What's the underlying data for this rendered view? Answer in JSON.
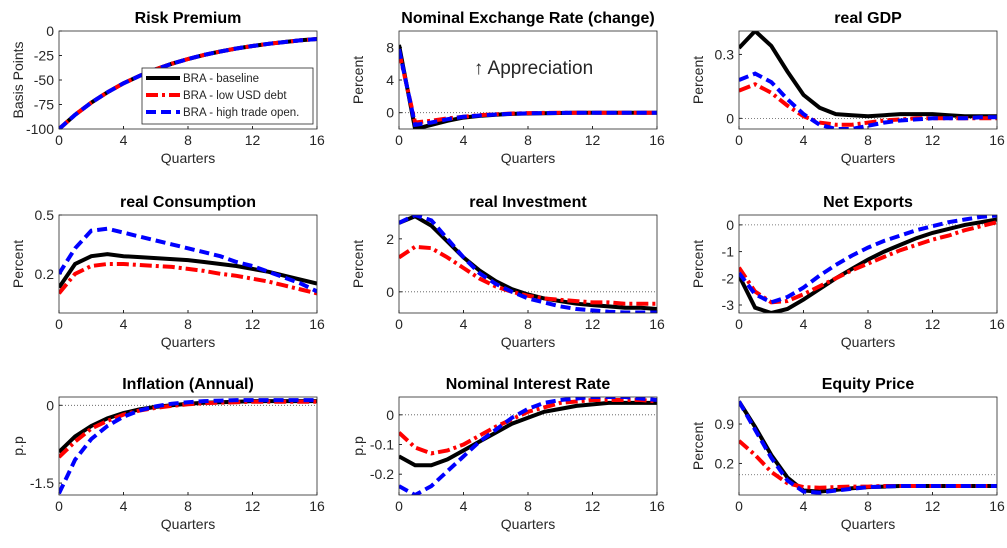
{
  "chart_data": [
    {
      "type": "line",
      "title": "Risk Premium",
      "ylabel": "Basis Points",
      "xlabel": "Quarters",
      "legend": "lower right",
      "x": [
        0,
        1,
        2,
        3,
        4,
        5,
        6,
        7,
        8,
        9,
        10,
        11,
        12,
        13,
        14,
        15,
        16
      ],
      "xlim": [
        0,
        16
      ],
      "xticks": [
        0,
        4,
        8,
        12,
        16
      ],
      "ylim": [
        -100,
        0
      ],
      "yticks": [
        -100,
        -75,
        -50,
        -25,
        0
      ],
      "series": [
        {
          "name": "BRA - baseline",
          "color": "#000000",
          "style": "solid",
          "values": [
            -100,
            -85.5,
            -73.1,
            -62.5,
            -53.4,
            -45.7,
            -39.1,
            -33.4,
            -28.6,
            -24.4,
            -20.9,
            -17.9,
            -15.3,
            -13.1,
            -11.2,
            -9.5,
            -8.2
          ]
        },
        {
          "name": "BRA - low USD debt",
          "color": "#ff0000",
          "style": "dashdot",
          "values": [
            -100,
            -85.5,
            -73.1,
            -62.5,
            -53.4,
            -45.7,
            -39.1,
            -33.4,
            -28.6,
            -24.4,
            -20.9,
            -17.9,
            -15.3,
            -13.1,
            -11.2,
            -9.5,
            -8.2
          ]
        },
        {
          "name": "BRA - high trade open.",
          "color": "#0000ff",
          "style": "dashed",
          "values": [
            -100,
            -85.5,
            -73.1,
            -62.5,
            -53.4,
            -45.7,
            -39.1,
            -33.4,
            -28.6,
            -24.4,
            -20.9,
            -17.9,
            -15.3,
            -13.1,
            -11.2,
            -9.5,
            -8.2
          ]
        }
      ]
    },
    {
      "type": "line",
      "title": "Nominal Exchange Rate (change)",
      "ylabel": "Percent",
      "xlabel": "Quarters",
      "annotation": "↑ Appreciation",
      "x": [
        0,
        1,
        2,
        3,
        4,
        5,
        6,
        7,
        8,
        9,
        10,
        11,
        12,
        13,
        14,
        15,
        16
      ],
      "xlim": [
        0,
        16
      ],
      "xticks": [
        0,
        4,
        8,
        12,
        16
      ],
      "ylim": [
        -2,
        10
      ],
      "yticks": [
        0,
        4,
        8
      ],
      "series": [
        {
          "color": "#000000",
          "style": "solid",
          "values": [
            8.3,
            -2,
            -1.5,
            -1,
            -0.6,
            -0.4,
            -0.25,
            -0.15,
            -0.1,
            -0.06,
            -0.04,
            -0.02,
            -0.01,
            0,
            0,
            0,
            0
          ]
        },
        {
          "color": "#ff0000",
          "style": "dashdot",
          "values": [
            7.5,
            -1.2,
            -1,
            -0.7,
            -0.5,
            -0.3,
            -0.2,
            -0.1,
            -0.05,
            -0.03,
            -0.02,
            -0.01,
            0,
            0,
            0,
            0,
            0
          ]
        },
        {
          "color": "#0000ff",
          "style": "dashed",
          "values": [
            7.8,
            -1.5,
            -1.2,
            -0.8,
            -0.5,
            -0.35,
            -0.22,
            -0.13,
            -0.08,
            -0.05,
            -0.03,
            -0.01,
            0,
            0,
            0,
            0,
            0
          ]
        }
      ]
    },
    {
      "type": "line",
      "title": "real GDP",
      "ylabel": "Percent",
      "xlabel": "Quarters",
      "x": [
        0,
        1,
        2,
        3,
        4,
        5,
        6,
        7,
        8,
        9,
        10,
        11,
        12,
        13,
        14,
        15,
        16
      ],
      "xlim": [
        0,
        16
      ],
      "xticks": [
        0,
        4,
        8,
        12,
        16
      ],
      "ylim": [
        -0.05,
        0.41
      ],
      "yticks": [
        0,
        0.3
      ],
      "series": [
        {
          "color": "#000000",
          "style": "solid",
          "values": [
            0.33,
            0.41,
            0.34,
            0.22,
            0.11,
            0.05,
            0.02,
            0.015,
            0.01,
            0.015,
            0.02,
            0.02,
            0.02,
            0.015,
            0.01,
            0.01,
            0.01
          ]
        },
        {
          "color": "#ff0000",
          "style": "dashdot",
          "values": [
            0.13,
            0.16,
            0.12,
            0.06,
            0.01,
            -0.02,
            -0.03,
            -0.03,
            -0.02,
            -0.01,
            -0.005,
            0,
            0,
            0,
            0,
            0,
            0
          ]
        },
        {
          "color": "#0000ff",
          "style": "dashed",
          "values": [
            0.18,
            0.21,
            0.17,
            0.09,
            0.02,
            -0.03,
            -0.05,
            -0.05,
            -0.035,
            -0.02,
            -0.01,
            -0.005,
            0,
            0,
            0,
            0.005,
            0.005
          ]
        }
      ]
    },
    {
      "type": "line",
      "title": "real Consumption",
      "ylabel": "Percent",
      "xlabel": "Quarters",
      "x": [
        0,
        1,
        2,
        3,
        4,
        5,
        6,
        7,
        8,
        9,
        10,
        11,
        12,
        13,
        14,
        15,
        16
      ],
      "xlim": [
        0,
        16
      ],
      "xticks": [
        0,
        4,
        8,
        12,
        16
      ],
      "ylim": [
        0,
        0.5
      ],
      "yticks": [
        0.2,
        0.5
      ],
      "series": [
        {
          "color": "#000000",
          "style": "solid",
          "values": [
            0.13,
            0.25,
            0.29,
            0.3,
            0.29,
            0.285,
            0.28,
            0.275,
            0.27,
            0.26,
            0.25,
            0.24,
            0.225,
            0.21,
            0.19,
            0.17,
            0.15
          ]
        },
        {
          "color": "#ff0000",
          "style": "dashdot",
          "values": [
            0.1,
            0.2,
            0.24,
            0.25,
            0.25,
            0.245,
            0.24,
            0.235,
            0.225,
            0.215,
            0.2,
            0.19,
            0.175,
            0.16,
            0.14,
            0.12,
            0.1
          ]
        },
        {
          "color": "#0000ff",
          "style": "dashed",
          "values": [
            0.2,
            0.33,
            0.42,
            0.43,
            0.41,
            0.39,
            0.37,
            0.35,
            0.33,
            0.31,
            0.29,
            0.26,
            0.24,
            0.21,
            0.18,
            0.15,
            0.11
          ]
        }
      ]
    },
    {
      "type": "line",
      "title": "real Investment",
      "ylabel": "Percent",
      "xlabel": "Quarters",
      "x": [
        0,
        1,
        2,
        3,
        4,
        5,
        6,
        7,
        8,
        9,
        10,
        11,
        12,
        13,
        14,
        15,
        16
      ],
      "xlim": [
        0,
        16
      ],
      "xticks": [
        0,
        4,
        8,
        12,
        16
      ],
      "ylim": [
        -0.8,
        2.9
      ],
      "yticks": [
        0,
        2
      ],
      "series": [
        {
          "color": "#000000",
          "style": "solid",
          "values": [
            2.6,
            2.85,
            2.5,
            1.9,
            1.3,
            0.8,
            0.4,
            0.1,
            -0.1,
            -0.25,
            -0.35,
            -0.45,
            -0.5,
            -0.55,
            -0.6,
            -0.6,
            -0.65
          ]
        },
        {
          "color": "#ff0000",
          "style": "dashdot",
          "values": [
            1.3,
            1.7,
            1.65,
            1.3,
            0.9,
            0.5,
            0.2,
            0,
            -0.15,
            -0.25,
            -0.3,
            -0.35,
            -0.4,
            -0.4,
            -0.45,
            -0.45,
            -0.45
          ]
        },
        {
          "color": "#0000ff",
          "style": "dashed",
          "values": [
            2.6,
            2.9,
            2.7,
            2,
            1.3,
            0.7,
            0.3,
            0,
            -0.25,
            -0.4,
            -0.55,
            -0.65,
            -0.7,
            -0.75,
            -0.78,
            -0.78,
            -0.78
          ]
        }
      ]
    },
    {
      "type": "line",
      "title": "Net Exports",
      "ylabel": "Percent",
      "xlabel": "Quarters",
      "x": [
        0,
        1,
        2,
        3,
        4,
        5,
        6,
        7,
        8,
        9,
        10,
        11,
        12,
        13,
        14,
        15,
        16
      ],
      "xlim": [
        0,
        16
      ],
      "xticks": [
        0,
        4,
        8,
        12,
        16
      ],
      "ylim": [
        -3.3,
        0.37
      ],
      "yticks": [
        -3,
        -2,
        -1,
        0
      ],
      "series": [
        {
          "color": "#000000",
          "style": "solid",
          "values": [
            -1.9,
            -3.1,
            -3.3,
            -3.15,
            -2.8,
            -2.4,
            -2,
            -1.65,
            -1.3,
            -1,
            -0.75,
            -0.5,
            -0.3,
            -0.15,
            0,
            0.1,
            0.2
          ]
        },
        {
          "color": "#ff0000",
          "style": "dashdot",
          "values": [
            -1.6,
            -2.5,
            -2.9,
            -2.85,
            -2.6,
            -2.3,
            -2,
            -1.7,
            -1.45,
            -1.2,
            -0.95,
            -0.75,
            -0.55,
            -0.4,
            -0.2,
            -0.05,
            0.1
          ]
        },
        {
          "color": "#0000ff",
          "style": "dashed",
          "values": [
            -1.8,
            -2.6,
            -2.9,
            -2.7,
            -2.35,
            -1.9,
            -1.5,
            -1.15,
            -0.85,
            -0.6,
            -0.4,
            -0.2,
            -0.05,
            0.1,
            0.2,
            0.3,
            0.35
          ]
        }
      ]
    },
    {
      "type": "line",
      "title": "Inflation (Annual)",
      "ylabel": "p.p",
      "xlabel": "Quarters",
      "x": [
        0,
        1,
        2,
        3,
        4,
        5,
        6,
        7,
        8,
        9,
        10,
        11,
        12,
        13,
        14,
        15,
        16
      ],
      "xlim": [
        0,
        16
      ],
      "xticks": [
        0,
        4,
        8,
        12,
        16
      ],
      "ylim": [
        -1.73,
        0.16
      ],
      "yticks": [
        -1.5,
        0
      ],
      "series": [
        {
          "color": "#000000",
          "style": "solid",
          "values": [
            -0.9,
            -0.6,
            -0.4,
            -0.25,
            -0.15,
            -0.08,
            -0.03,
            0,
            0.03,
            0.05,
            0.06,
            0.07,
            0.08,
            0.08,
            0.08,
            0.08,
            0.08
          ]
        },
        {
          "color": "#ff0000",
          "style": "dashdot",
          "values": [
            -1,
            -0.7,
            -0.45,
            -0.3,
            -0.18,
            -0.1,
            -0.05,
            -0.01,
            0.02,
            0.04,
            0.05,
            0.06,
            0.07,
            0.07,
            0.07,
            0.07,
            0.07
          ]
        },
        {
          "color": "#0000ff",
          "style": "dashed",
          "values": [
            -1.7,
            -1.05,
            -0.65,
            -0.4,
            -0.22,
            -0.1,
            -0.02,
            0.03,
            0.06,
            0.08,
            0.09,
            0.1,
            0.1,
            0.1,
            0.1,
            0.1,
            0.1
          ]
        }
      ]
    },
    {
      "type": "line",
      "title": "Nominal Interest Rate",
      "ylabel": "p.p",
      "xlabel": "Quarters",
      "x": [
        0,
        1,
        2,
        3,
        4,
        5,
        6,
        7,
        8,
        9,
        10,
        11,
        12,
        13,
        14,
        15,
        16
      ],
      "xlim": [
        0,
        16
      ],
      "xticks": [
        0,
        4,
        8,
        12,
        16
      ],
      "ylim": [
        -0.27,
        0.06
      ],
      "yticks": [
        -0.2,
        -0.1,
        0
      ],
      "series": [
        {
          "color": "#000000",
          "style": "solid",
          "values": [
            -0.14,
            -0.17,
            -0.17,
            -0.15,
            -0.12,
            -0.09,
            -0.06,
            -0.03,
            -0.01,
            0.01,
            0.02,
            0.03,
            0.035,
            0.04,
            0.04,
            0.04,
            0.04
          ]
        },
        {
          "color": "#ff0000",
          "style": "dashdot",
          "values": [
            -0.06,
            -0.11,
            -0.13,
            -0.12,
            -0.1,
            -0.07,
            -0.04,
            -0.015,
            0.01,
            0.025,
            0.04,
            0.045,
            0.05,
            0.05,
            0.05,
            0.05,
            0.045
          ]
        },
        {
          "color": "#0000ff",
          "style": "dashed",
          "values": [
            -0.24,
            -0.27,
            -0.24,
            -0.19,
            -0.14,
            -0.09,
            -0.05,
            -0.01,
            0.02,
            0.04,
            0.05,
            0.055,
            0.06,
            0.06,
            0.06,
            0.055,
            0.05
          ]
        }
      ]
    },
    {
      "type": "line",
      "title": "Equity Price",
      "ylabel": "Percent",
      "xlabel": "Quarters",
      "x": [
        0,
        1,
        2,
        3,
        4,
        5,
        6,
        7,
        8,
        9,
        10,
        11,
        12,
        13,
        14,
        15,
        16
      ],
      "xlim": [
        0,
        16
      ],
      "xticks": [
        0,
        4,
        8,
        12,
        16
      ],
      "ylim": [
        -0.36,
        1.38
      ],
      "yticks": [
        0.2,
        0.9
      ],
      "series": [
        {
          "color": "#000000",
          "style": "solid",
          "values": [
            1.3,
            0.85,
            0.35,
            -0.05,
            -0.28,
            -0.3,
            -0.27,
            -0.24,
            -0.22,
            -0.21,
            -0.2,
            -0.2,
            -0.2,
            -0.2,
            -0.2,
            -0.2,
            -0.2
          ]
        },
        {
          "color": "#ff0000",
          "style": "dashdot",
          "values": [
            0.6,
            0.35,
            0.05,
            -0.15,
            -0.22,
            -0.23,
            -0.22,
            -0.21,
            -0.21,
            -0.2,
            -0.2,
            -0.2,
            -0.2,
            -0.2,
            -0.2,
            -0.2,
            -0.2
          ]
        },
        {
          "color": "#0000ff",
          "style": "dashed",
          "values": [
            1.3,
            0.8,
            0.3,
            -0.1,
            -0.3,
            -0.32,
            -0.28,
            -0.25,
            -0.22,
            -0.21,
            -0.2,
            -0.2,
            -0.2,
            -0.2,
            -0.2,
            -0.2,
            -0.2
          ]
        }
      ]
    }
  ]
}
